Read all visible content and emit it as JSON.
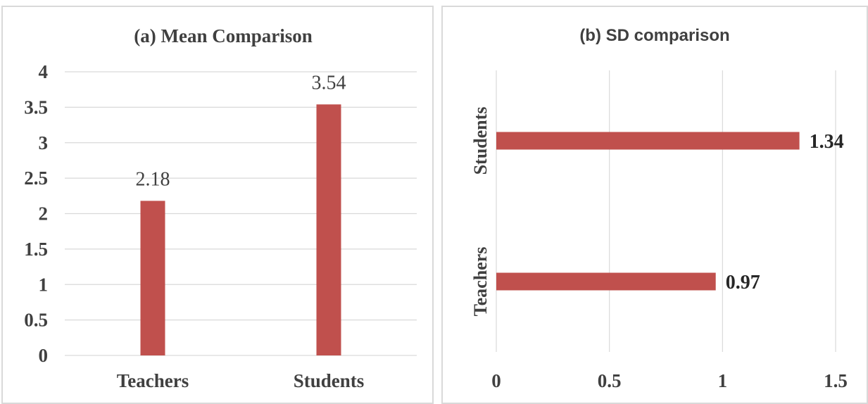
{
  "colors": {
    "bar": "#c0504d",
    "grid": "#d9d9d9",
    "text": "#404040",
    "label": "#262626"
  },
  "chart_data": [
    {
      "type": "bar",
      "title": "(a)  Mean Comparison",
      "categories": [
        "Teachers",
        "Students"
      ],
      "values": [
        2.18,
        3.54
      ],
      "data_labels": [
        "2.18",
        "3.54"
      ],
      "ylim": [
        0,
        4
      ],
      "yticks": [
        0,
        0.5,
        1,
        1.5,
        2,
        2.5,
        3,
        3.5,
        4
      ],
      "ytick_labels": [
        "0",
        "0.5",
        "1",
        "1.5",
        "2",
        "2.5",
        "3",
        "3.5",
        "4"
      ],
      "orientation": "vertical",
      "grid": true,
      "legend": "none"
    },
    {
      "type": "bar",
      "title": "(b) SD comparison",
      "categories": [
        "Teachers",
        "Students"
      ],
      "values": [
        0.97,
        1.34
      ],
      "data_labels": [
        "0.97",
        "1.34"
      ],
      "xlim": [
        0,
        1.5
      ],
      "xticks": [
        0,
        0.5,
        1,
        1.5
      ],
      "xtick_labels": [
        "0",
        "0.5",
        "1",
        "1.5"
      ],
      "orientation": "horizontal",
      "grid": true,
      "legend": "none"
    }
  ]
}
